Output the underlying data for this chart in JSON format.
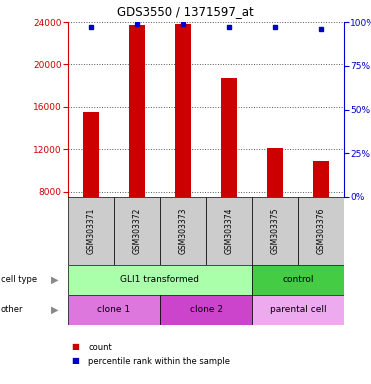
{
  "title": "GDS3550 / 1371597_at",
  "samples": [
    "GSM303371",
    "GSM303372",
    "GSM303373",
    "GSM303374",
    "GSM303375",
    "GSM303376"
  ],
  "bar_values": [
    15500,
    23700,
    23800,
    18700,
    12100,
    10900
  ],
  "percentile_values": [
    97,
    99,
    99,
    97,
    97,
    96
  ],
  "y_min": 7500,
  "y_max": 24000,
  "y_ticks": [
    8000,
    12000,
    16000,
    20000,
    24000
  ],
  "pct_ticks": [
    0,
    25,
    50,
    75,
    100
  ],
  "bar_color": "#cc0000",
  "dot_color": "#0000cc",
  "cell_type_groups": [
    {
      "label": "GLI1 transformed",
      "span": [
        0,
        4
      ],
      "color": "#aaffaa"
    },
    {
      "label": "control",
      "span": [
        4,
        6
      ],
      "color": "#44cc44"
    }
  ],
  "other_groups": [
    {
      "label": "clone 1",
      "span": [
        0,
        2
      ],
      "color": "#dd77dd"
    },
    {
      "label": "clone 2",
      "span": [
        2,
        4
      ],
      "color": "#cc44cc"
    },
    {
      "label": "parental cell",
      "span": [
        4,
        6
      ],
      "color": "#eeaaee"
    }
  ],
  "background_color": "#ffffff",
  "plot_bg_color": "#ffffff",
  "grid_color": "#555555",
  "sample_bg_color": "#cccccc"
}
